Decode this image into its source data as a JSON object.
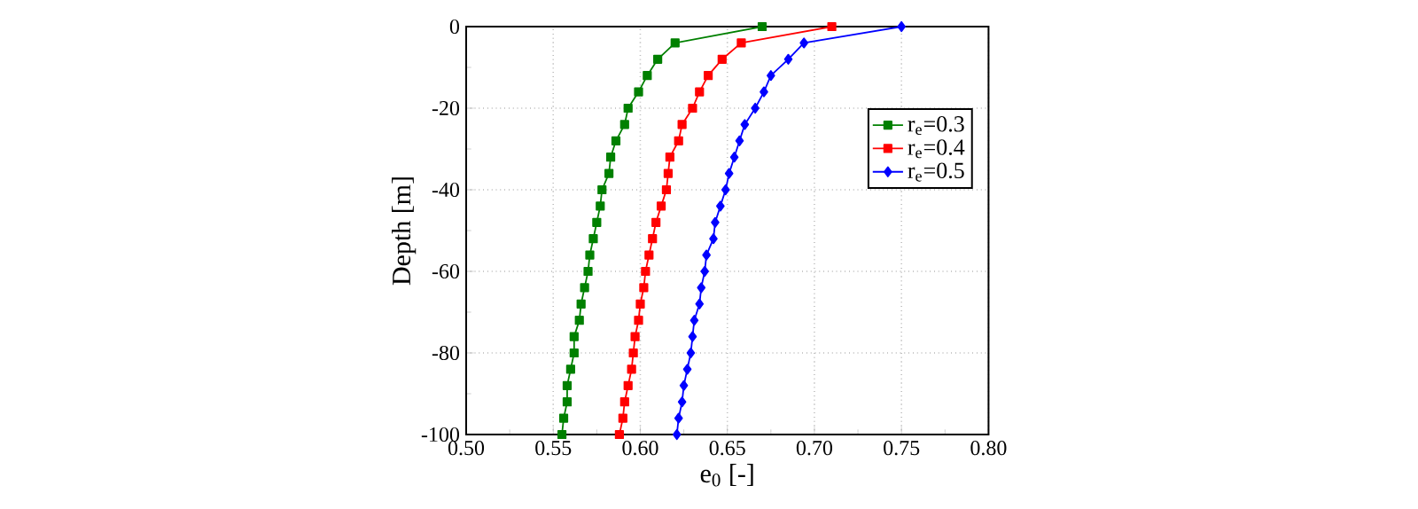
{
  "chart_data": {
    "type": "line",
    "xlabel": "e$_{0}$ [-]",
    "ylabel": "Depth [m]",
    "series": [
      {
        "name": "r$_{e}$=0.3",
        "color": "#008000",
        "marker": "square",
        "x": [
          0.67,
          0.62,
          0.61,
          0.604,
          0.599,
          0.593,
          0.591,
          0.586,
          0.583,
          0.582,
          0.578,
          0.577,
          0.575,
          0.573,
          0.571,
          0.57,
          0.568,
          0.566,
          0.565,
          0.562,
          0.562,
          0.56,
          0.558,
          0.558,
          0.556,
          0.555
        ],
        "values": [
          0,
          -4,
          -8,
          -12,
          -16,
          -20,
          -24,
          -28,
          -32,
          -36,
          -40,
          -44,
          -48,
          -52,
          -56,
          -60,
          -64,
          -68,
          -72,
          -76,
          -80,
          -84,
          -88,
          -92,
          -96,
          -100
        ]
      },
      {
        "name": "r$_{e}$=0.4",
        "color": "#ff0000",
        "marker": "square",
        "x": [
          0.71,
          0.658,
          0.647,
          0.639,
          0.634,
          0.63,
          0.624,
          0.622,
          0.617,
          0.616,
          0.615,
          0.612,
          0.609,
          0.607,
          0.605,
          0.603,
          0.602,
          0.6,
          0.599,
          0.597,
          0.596,
          0.595,
          0.593,
          0.591,
          0.59,
          0.588
        ],
        "values": [
          0,
          -4,
          -8,
          -12,
          -16,
          -20,
          -24,
          -28,
          -32,
          -36,
          -40,
          -44,
          -48,
          -52,
          -56,
          -60,
          -64,
          -68,
          -72,
          -76,
          -80,
          -84,
          -88,
          -92,
          -96,
          -100
        ]
      },
      {
        "name": "r$_{e}$=0.5",
        "color": "#0000ff",
        "marker": "diamond",
        "x": [
          0.75,
          0.694,
          0.685,
          0.675,
          0.671,
          0.666,
          0.66,
          0.657,
          0.654,
          0.651,
          0.649,
          0.646,
          0.643,
          0.642,
          0.638,
          0.637,
          0.635,
          0.634,
          0.631,
          0.63,
          0.629,
          0.627,
          0.625,
          0.624,
          0.622,
          0.621
        ],
        "values": [
          0,
          -4,
          -8,
          -12,
          -16,
          -20,
          -24,
          -28,
          -32,
          -36,
          -40,
          -44,
          -48,
          -52,
          -56,
          -60,
          -64,
          -68,
          -72,
          -76,
          -80,
          -84,
          -88,
          -92,
          -96,
          -100
        ]
      }
    ],
    "xlim": [
      0.5,
      0.8
    ],
    "xticks": [
      {
        "value": 0.5,
        "label": "0.50"
      },
      0.55,
      {
        "value": 0.6,
        "label": "0.60"
      },
      0.65,
      {
        "value": 0.7,
        "label": "0.70"
      },
      0.75,
      {
        "value": 0.8,
        "label": "0.80"
      }
    ],
    "ylim": [
      -100,
      0
    ],
    "yticks": [
      -100,
      -80,
      -60,
      -40,
      -20,
      0
    ],
    "grid": true,
    "legend": "top right",
    "line_style": "solid"
  }
}
